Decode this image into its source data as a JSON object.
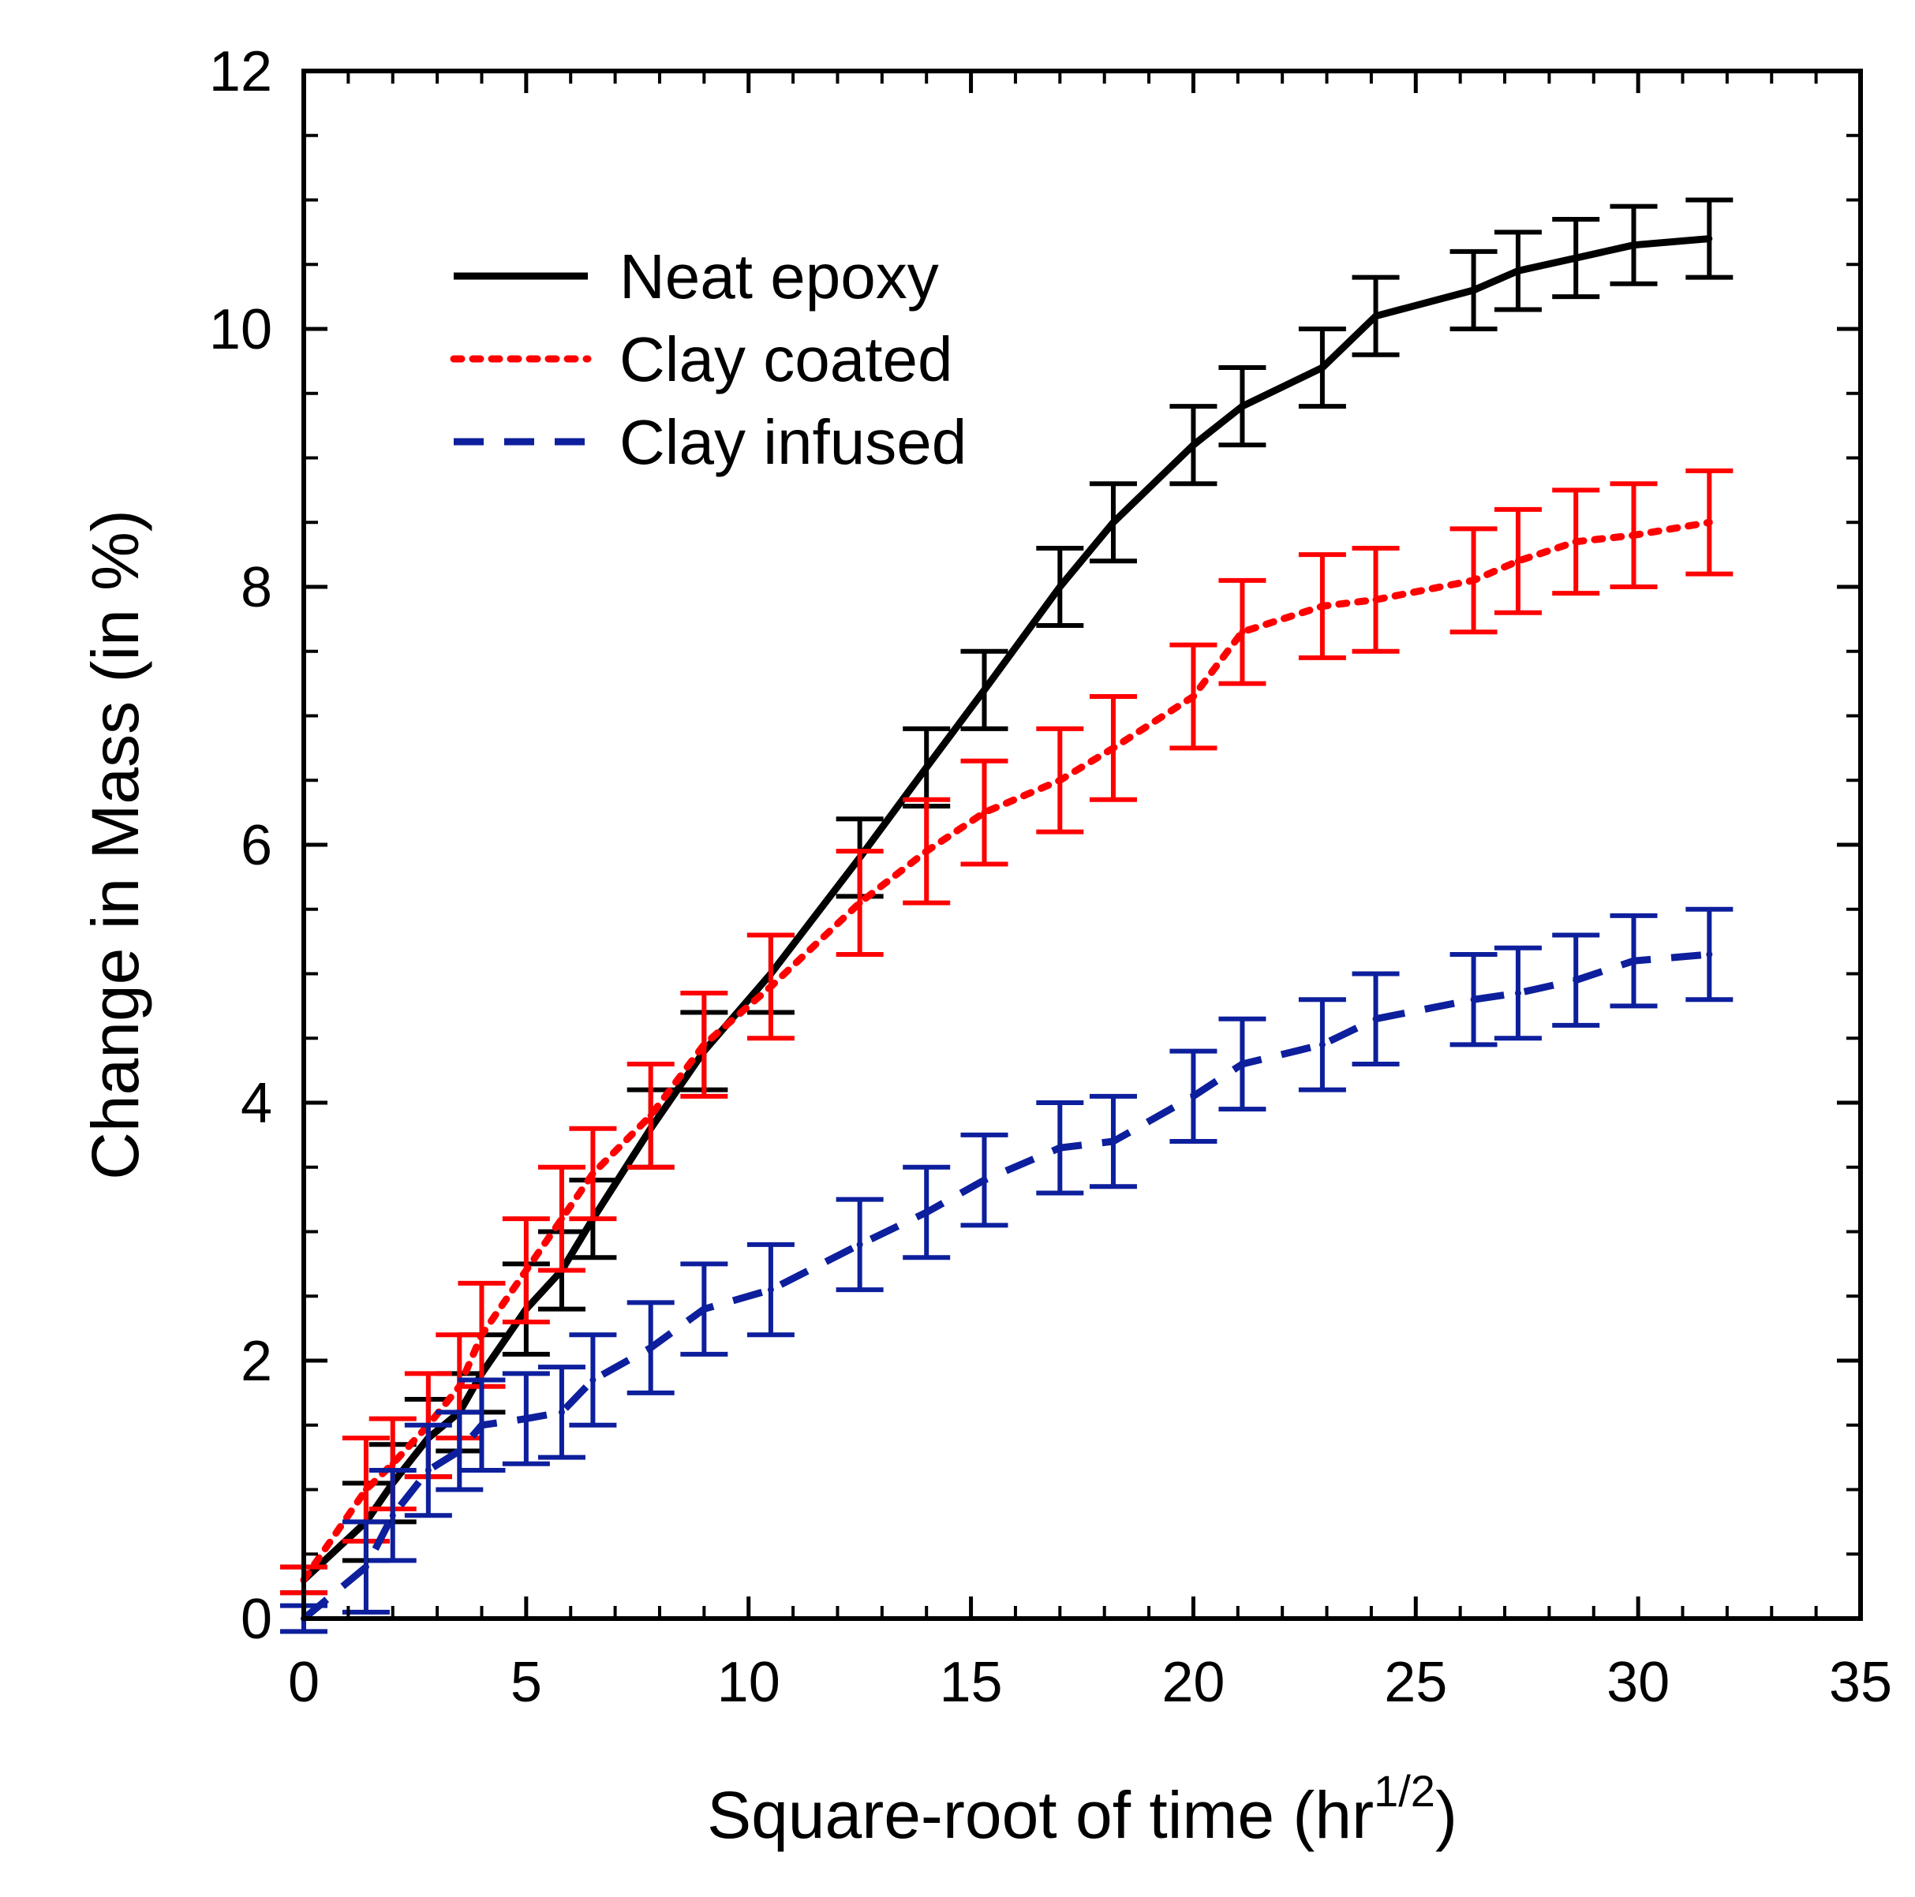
{
  "chart_data": {
    "type": "line",
    "title": "",
    "xlabel": "Square-root of time (hr",
    "xlabel_sup": "1/2",
    "xlabel_close": ")",
    "ylabel": "Change in Mass (in %)",
    "xlim": [
      0,
      35
    ],
    "ylim": [
      0,
      12
    ],
    "xticks": [
      "0",
      "5",
      "10",
      "15",
      "20",
      "25",
      "30",
      "35"
    ],
    "yticks": [
      "0",
      "2",
      "4",
      "6",
      "8",
      "10",
      "12"
    ],
    "legend_position": "top-left",
    "series": [
      {
        "name": "Neat epoxy",
        "color": "#000000",
        "style": "solid",
        "x": [
          0.0,
          1.4,
          2.0,
          2.8,
          3.5,
          4.0,
          5.0,
          5.8,
          6.5,
          7.8,
          9.0,
          10.5,
          12.5,
          14.0,
          15.3,
          17.0,
          18.2,
          20.0,
          21.1,
          22.9,
          24.1,
          26.3,
          27.3,
          28.6,
          29.9,
          31.6
        ],
        "y": [
          0.3,
          0.75,
          1.05,
          1.4,
          1.6,
          1.9,
          2.4,
          2.7,
          3.1,
          3.8,
          4.4,
          5.0,
          5.9,
          6.6,
          7.2,
          8.0,
          8.5,
          9.1,
          9.4,
          9.7,
          10.1,
          10.3,
          10.45,
          10.55,
          10.65,
          10.7
        ],
        "err": [
          0.1,
          0.3,
          0.3,
          0.3,
          0.3,
          0.3,
          0.35,
          0.3,
          0.3,
          0.3,
          0.3,
          0.3,
          0.3,
          0.3,
          0.3,
          0.3,
          0.3,
          0.3,
          0.3,
          0.3,
          0.3,
          0.3,
          0.3,
          0.3,
          0.3,
          0.3
        ]
      },
      {
        "name": "Clay coated",
        "color": "#ff0000",
        "style": "dotted",
        "x": [
          0.0,
          1.4,
          2.0,
          2.8,
          3.5,
          4.0,
          5.0,
          5.8,
          6.5,
          7.8,
          9.0,
          10.5,
          12.5,
          14.0,
          15.3,
          17.0,
          18.2,
          20.0,
          21.1,
          22.9,
          24.1,
          26.3,
          27.3,
          28.6,
          29.9,
          31.6
        ],
        "y": [
          0.3,
          1.0,
          1.2,
          1.5,
          1.8,
          2.2,
          2.7,
          3.1,
          3.45,
          3.9,
          4.45,
          4.9,
          5.55,
          5.95,
          6.25,
          6.5,
          6.75,
          7.15,
          7.65,
          7.85,
          7.9,
          8.05,
          8.2,
          8.35,
          8.4,
          8.5
        ],
        "err": [
          0.1,
          0.4,
          0.35,
          0.4,
          0.4,
          0.4,
          0.4,
          0.4,
          0.35,
          0.4,
          0.4,
          0.4,
          0.4,
          0.4,
          0.4,
          0.4,
          0.4,
          0.4,
          0.4,
          0.4,
          0.4,
          0.4,
          0.4,
          0.4,
          0.4,
          0.4
        ]
      },
      {
        "name": "Clay infused",
        "color": "#0d1f9c",
        "style": "dashed",
        "x": [
          0.0,
          1.4,
          2.0,
          2.8,
          3.5,
          4.0,
          5.0,
          5.8,
          6.5,
          7.8,
          9.0,
          10.5,
          12.5,
          14.0,
          15.3,
          17.0,
          18.2,
          20.0,
          21.1,
          22.9,
          24.1,
          26.3,
          27.3,
          28.6,
          29.9,
          31.6
        ],
        "y": [
          0.0,
          0.4,
          0.8,
          1.15,
          1.3,
          1.5,
          1.55,
          1.6,
          1.85,
          2.1,
          2.4,
          2.55,
          2.9,
          3.15,
          3.4,
          3.65,
          3.7,
          4.05,
          4.3,
          4.45,
          4.65,
          4.8,
          4.85,
          4.95,
          5.1,
          5.15
        ],
        "err": [
          0.1,
          0.35,
          0.35,
          0.35,
          0.3,
          0.35,
          0.35,
          0.35,
          0.35,
          0.35,
          0.35,
          0.35,
          0.35,
          0.35,
          0.35,
          0.35,
          0.35,
          0.35,
          0.35,
          0.35,
          0.35,
          0.35,
          0.35,
          0.35,
          0.35,
          0.35
        ]
      }
    ]
  }
}
